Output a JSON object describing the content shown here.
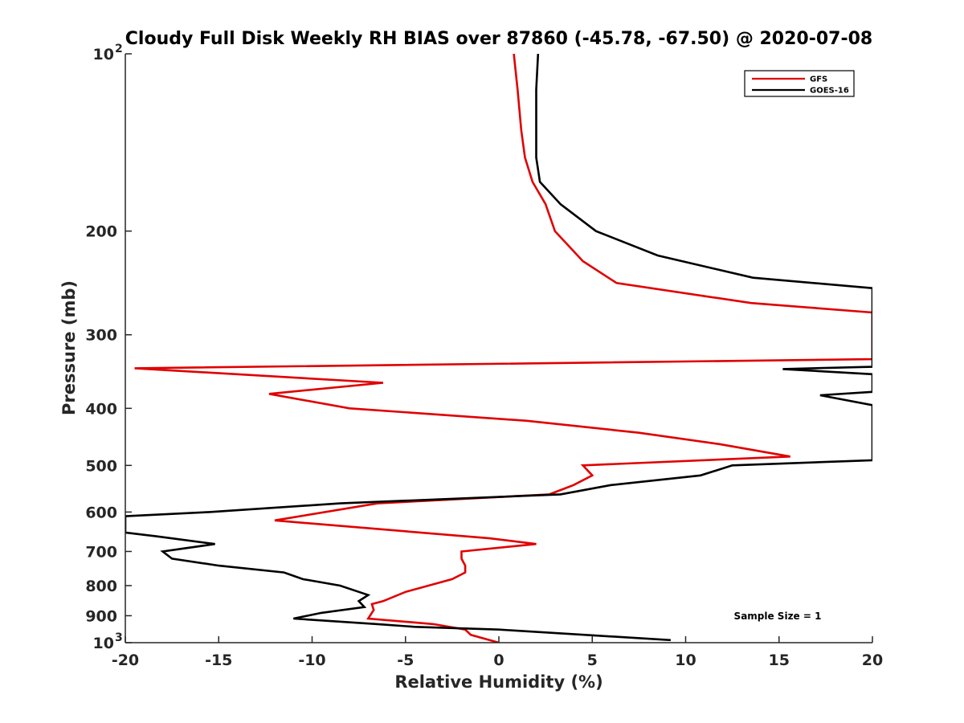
{
  "chart_data": {
    "type": "line",
    "title": "Cloudy Full Disk Weekly RH BIAS over 87860 (-45.78, -67.50) @ 2020-07-08",
    "xlabel": "Relative Humidity (%)",
    "ylabel": "Pressure (mb)",
    "xlim": [
      -20,
      20
    ],
    "ylim": [
      100,
      1000
    ],
    "yscale": "log",
    "y_reversed": true,
    "x_ticks": [
      "-20",
      "-15",
      "-10",
      "-5",
      "0",
      "5",
      "10",
      "15",
      "20"
    ],
    "y_ticks": [
      {
        "value": 100,
        "label": "10",
        "sup": "2"
      },
      {
        "value": 200,
        "label": "200",
        "sup": ""
      },
      {
        "value": 300,
        "label": "300",
        "sup": ""
      },
      {
        "value": 400,
        "label": "400",
        "sup": ""
      },
      {
        "value": 500,
        "label": "500",
        "sup": ""
      },
      {
        "value": 600,
        "label": "600",
        "sup": ""
      },
      {
        "value": 700,
        "label": "700",
        "sup": ""
      },
      {
        "value": 800,
        "label": "800",
        "sup": ""
      },
      {
        "value": 900,
        "label": "900",
        "sup": ""
      },
      {
        "value": 1000,
        "label": "10",
        "sup": "3"
      }
    ],
    "legend_position": "top-right",
    "annotation": "Sample Size = 1",
    "series": [
      {
        "name": "GFS",
        "color": "#e00000",
        "points": [
          [
            0.8,
            100
          ],
          [
            1.0,
            115
          ],
          [
            1.2,
            135
          ],
          [
            1.4,
            150
          ],
          [
            1.8,
            165
          ],
          [
            2.5,
            180
          ],
          [
            3.0,
            200
          ],
          [
            4.5,
            225
          ],
          [
            6.3,
            245
          ],
          [
            13.5,
            265
          ],
          [
            20.0,
            275
          ],
          [
            20.0,
            330
          ],
          [
            -19.5,
            342
          ],
          [
            -6.2,
            362
          ],
          [
            -12.3,
            378
          ],
          [
            -8.0,
            400
          ],
          [
            1.5,
            420
          ],
          [
            7.5,
            440
          ],
          [
            11.8,
            460
          ],
          [
            15.6,
            483
          ],
          [
            4.5,
            500
          ],
          [
            5.0,
            520
          ],
          [
            4.0,
            540
          ],
          [
            2.7,
            560
          ],
          [
            -6.5,
            580
          ],
          [
            -12.0,
            620
          ],
          [
            -0.5,
            665
          ],
          [
            2.0,
            680
          ],
          [
            -2.0,
            700
          ],
          [
            -2.0,
            720
          ],
          [
            -1.8,
            740
          ],
          [
            -1.8,
            760
          ],
          [
            -2.5,
            780
          ],
          [
            -5.0,
            820
          ],
          [
            -6.2,
            850
          ],
          [
            -6.8,
            860
          ],
          [
            -6.7,
            880
          ],
          [
            -7.0,
            910
          ],
          [
            -3.5,
            930
          ],
          [
            -1.8,
            950
          ],
          [
            -1.5,
            970
          ],
          [
            0.0,
            1000
          ]
        ]
      },
      {
        "name": "GOES-16",
        "color": "#000000",
        "points": [
          [
            2.1,
            100
          ],
          [
            2.0,
            115
          ],
          [
            2.0,
            135
          ],
          [
            2.0,
            150
          ],
          [
            2.2,
            165
          ],
          [
            3.3,
            180
          ],
          [
            5.2,
            200
          ],
          [
            8.5,
            220
          ],
          [
            13.6,
            240
          ],
          [
            20.0,
            250
          ],
          [
            20.0,
            340
          ],
          [
            15.2,
            343
          ],
          [
            20.0,
            350
          ],
          [
            20.0,
            375
          ],
          [
            17.2,
            380
          ],
          [
            20.0,
            395
          ],
          [
            20.0,
            490
          ],
          [
            12.5,
            500
          ],
          [
            10.8,
            520
          ],
          [
            6.0,
            540
          ],
          [
            3.3,
            560
          ],
          [
            -8.5,
            580
          ],
          [
            -15.5,
            600
          ],
          [
            -20.0,
            610
          ],
          [
            -20.0,
            650
          ],
          [
            -18.3,
            660
          ],
          [
            -15.2,
            680
          ],
          [
            -18.0,
            700
          ],
          [
            -17.5,
            720
          ],
          [
            -15.0,
            740
          ],
          [
            -11.5,
            760
          ],
          [
            -10.5,
            780
          ],
          [
            -8.5,
            800
          ],
          [
            -7.0,
            830
          ],
          [
            -7.5,
            850
          ],
          [
            -7.2,
            870
          ],
          [
            -9.5,
            890
          ],
          [
            -11.0,
            910
          ],
          [
            -6.5,
            930
          ],
          [
            -4.5,
            940
          ],
          [
            0.0,
            950
          ],
          [
            9.2,
            990
          ]
        ]
      }
    ]
  }
}
